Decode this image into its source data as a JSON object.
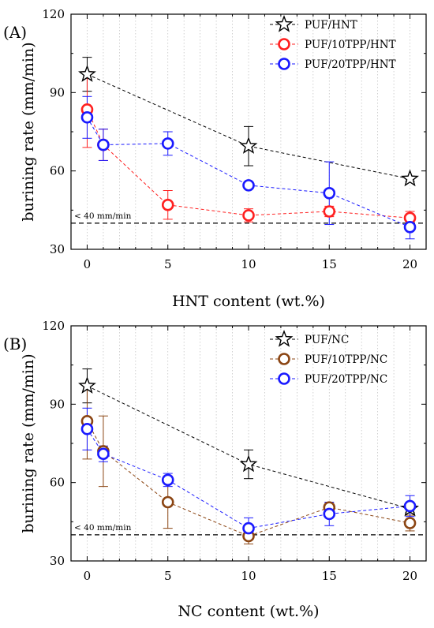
{
  "chart_data": [
    {
      "type": "line",
      "panel_label": "(A)",
      "xlabel": "HNT content (wt.%)",
      "ylabel": "burining rate (mm/min)",
      "xlim": [
        -1,
        21
      ],
      "ylim": [
        30,
        120
      ],
      "xticks": [
        0,
        5,
        10,
        15,
        20
      ],
      "yticks": [
        30,
        60,
        90,
        120
      ],
      "grid": "vertical dotted",
      "legend_position": "top-right",
      "reference_line": {
        "y": 40,
        "label": "< 40 mm/min"
      },
      "series": [
        {
          "name": "PUF/HNT",
          "marker": "star",
          "color": "#000000",
          "x": [
            0,
            10,
            20
          ],
          "y": [
            97,
            69.5,
            57
          ],
          "err": [
            6.5,
            7.5,
            1
          ]
        },
        {
          "name": "PUF/10TPP/HNT",
          "marker": "circle",
          "color": "#ff2020",
          "x": [
            0,
            1,
            5,
            10,
            15,
            20
          ],
          "y": [
            83.5,
            70,
            47,
            43,
            44.5,
            42
          ],
          "err": [
            14.5,
            6,
            5.5,
            2.5,
            2,
            2.5
          ]
        },
        {
          "name": "PUF/20TPP/HNT",
          "marker": "circle",
          "color": "#1a1aff",
          "x": [
            0,
            1,
            5,
            10,
            15,
            20
          ],
          "y": [
            80.5,
            70,
            70.5,
            54.5,
            51.5,
            38.5
          ],
          "err": [
            8,
            6,
            4.5,
            1,
            12,
            4.5
          ]
        }
      ]
    },
    {
      "type": "line",
      "panel_label": "(B)",
      "xlabel": "NC content (wt.%)",
      "ylabel": "burining rate (mm/min)",
      "xlim": [
        -1,
        21
      ],
      "ylim": [
        30,
        120
      ],
      "xticks": [
        0,
        5,
        10,
        15,
        20
      ],
      "yticks": [
        30,
        60,
        90,
        120
      ],
      "grid": "vertical dotted",
      "legend_position": "top-right",
      "reference_line": {
        "y": 40,
        "label": "< 40 mm/min"
      },
      "series": [
        {
          "name": "PUF/NC",
          "marker": "star",
          "color": "#000000",
          "x": [
            0,
            10,
            20
          ],
          "y": [
            97,
            67,
            50
          ],
          "err": [
            6.5,
            5.5,
            1.5
          ]
        },
        {
          "name": "PUF/10TPP/NC",
          "marker": "circle",
          "color": "#8b4513",
          "x": [
            0,
            1,
            5,
            10,
            15,
            20
          ],
          "y": [
            83.5,
            72,
            52.5,
            39.5,
            50.5,
            44.5
          ],
          "err": [
            14.5,
            13.5,
            10,
            3,
            1.5,
            3
          ]
        },
        {
          "name": "PUF/20TPP/NC",
          "marker": "circle",
          "color": "#1a1aff",
          "x": [
            0,
            1,
            5,
            10,
            15,
            20
          ],
          "y": [
            80.5,
            71,
            61,
            42.5,
            48,
            51
          ],
          "err": [
            8,
            3,
            2.5,
            4,
            4.5,
            4
          ]
        }
      ]
    }
  ]
}
